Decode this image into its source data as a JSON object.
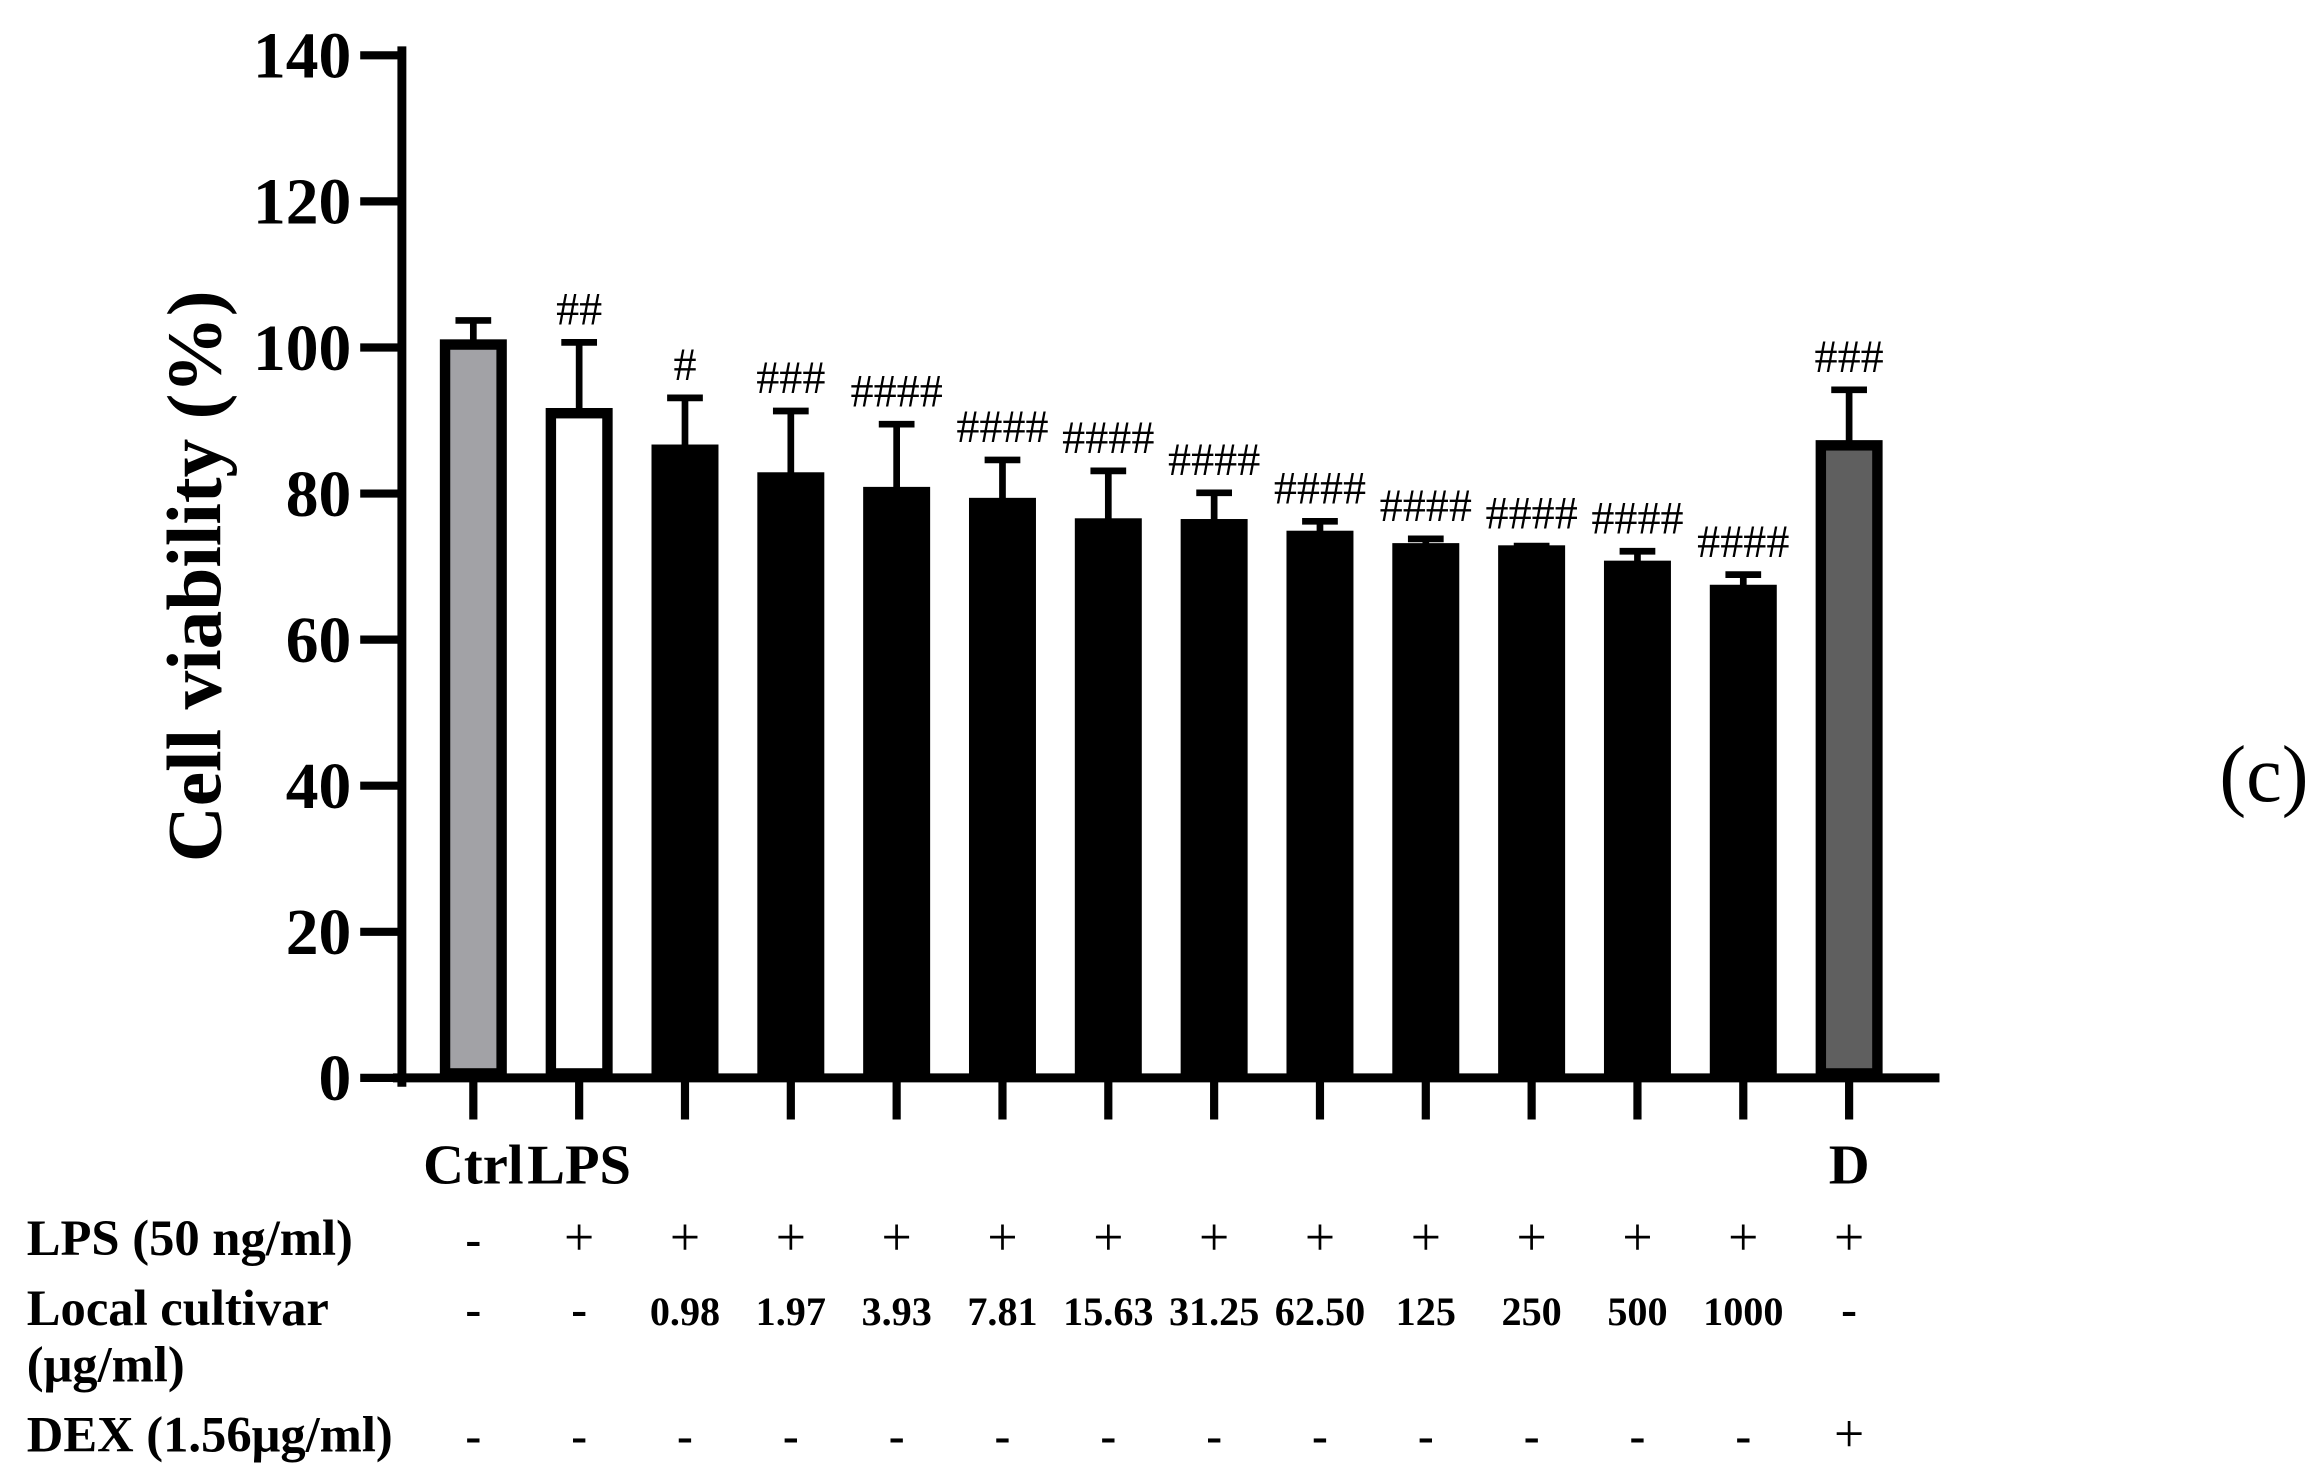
{
  "panel_label": "(c)",
  "chart_data": {
    "type": "bar",
    "ylabel": "Cell viability (%)",
    "ylim": [
      0,
      140
    ],
    "yticks": [
      0,
      20,
      40,
      60,
      80,
      100,
      120,
      140
    ],
    "ytick_labels": [
      "0",
      "20",
      "40",
      "60",
      "80",
      "100",
      "120",
      "140"
    ],
    "categories": [
      "Ctrl",
      "LPS",
      "",
      "",
      "",
      "",
      "",
      "",
      "",
      "",
      "",
      "",
      "",
      "D"
    ],
    "values": [
      100.4,
      91.0,
      86.0,
      82.2,
      80.2,
      78.7,
      75.9,
      75.8,
      74.2,
      72.5,
      72.2,
      70.1,
      66.8,
      86.6
    ],
    "errors": [
      3.3,
      9.7,
      7.1,
      9.1,
      9.3,
      5.9,
      7.2,
      4.3,
      2.0,
      1.3,
      0.6,
      2.0,
      2.1,
      7.6
    ],
    "error_bar_style": "upper",
    "significance": [
      "",
      "##",
      "#",
      "###",
      "####",
      "####",
      "####",
      "####",
      "####",
      "####",
      "####",
      "####",
      "####",
      "###"
    ],
    "bar_colors": [
      "#a2a2a6",
      "#ffffff",
      "#000000",
      "#000000",
      "#000000",
      "#000000",
      "#000000",
      "#000000",
      "#000000",
      "#000000",
      "#000000",
      "#000000",
      "#000000",
      "#5f5f5f"
    ],
    "outline_color": "#000000",
    "grid": false,
    "legend": "none"
  },
  "treatment_table": {
    "rows": [
      {
        "label": "LPS (50 ng/ml)",
        "values": [
          "-",
          "+",
          "+",
          "+",
          "+",
          "+",
          "+",
          "+",
          "+",
          "+",
          "+",
          "+",
          "+",
          "+"
        ]
      },
      {
        "label": "Local cultivar",
        "label_line2": "(μg/ml)",
        "values": [
          "-",
          "-",
          "0.98",
          "1.97",
          "3.93",
          "7.81",
          "15.63",
          "31.25",
          "62.50",
          "125",
          "250",
          "500",
          "1000",
          "-"
        ]
      },
      {
        "label": "DEX (1.56μg/ml)",
        "values": [
          "-",
          "-",
          "-",
          "-",
          "-",
          "-",
          "-",
          "-",
          "-",
          "-",
          "-",
          "-",
          "-",
          "+"
        ]
      }
    ]
  }
}
